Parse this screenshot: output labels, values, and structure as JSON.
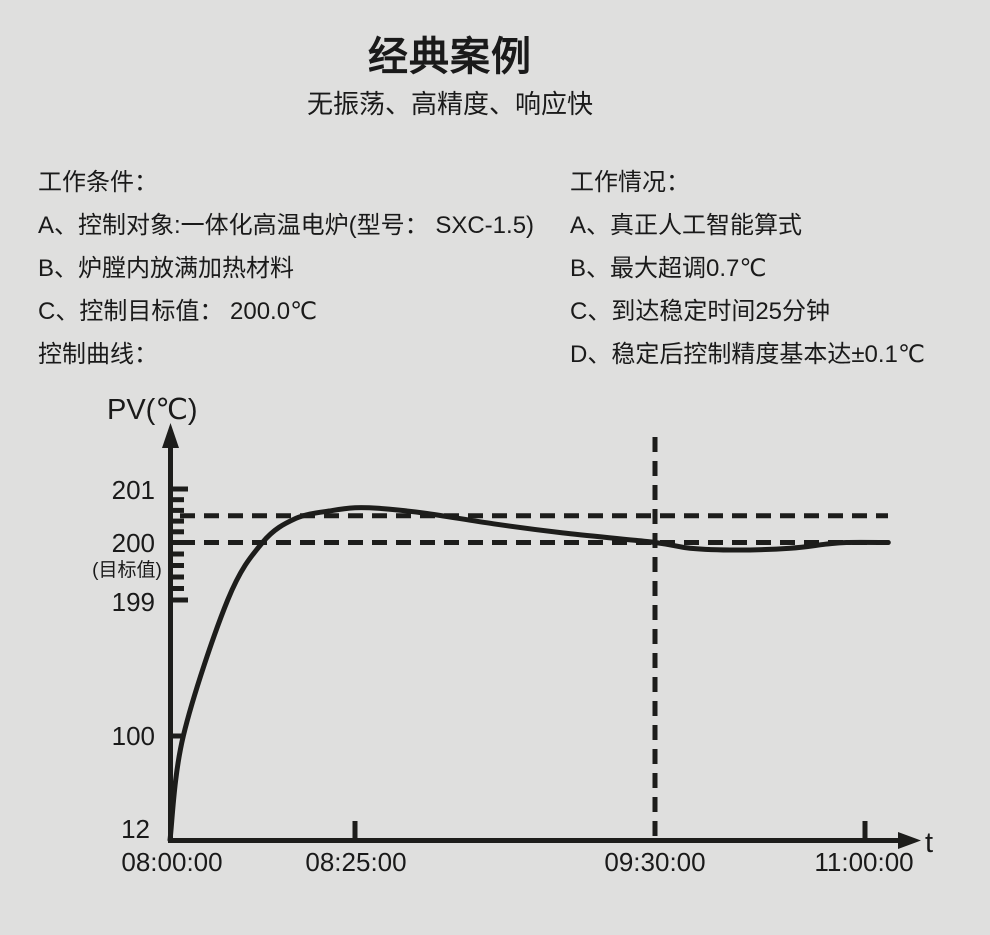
{
  "page": {
    "title": "经典案例",
    "subtitle": "无振荡、高精度、响应快"
  },
  "conditions": {
    "heading": "工作条件：",
    "items": [
      "A、控制对象:一体化高温电炉(型号： SXC-1.5)",
      "B、炉膛内放满加热材料",
      "C、控制目标值： 200.0℃"
    ],
    "curve_label": "控制曲线："
  },
  "performance": {
    "heading": "工作情况：",
    "items": [
      "A、真正人工智能算式",
      "B、最大超调0.7℃",
      "C、到达稳定时间25分钟",
      "D、稳定后控制精度基本达±0.1℃"
    ]
  },
  "chart_data": {
    "type": "line",
    "title": "控制曲线",
    "x_axis_label": "t",
    "y_axis_label": "PV(℃)",
    "x_tick_labels": [
      "08:00:00",
      "08:25:00",
      "09:30:00",
      "11:00:00"
    ],
    "x_tick_minutes": [
      0,
      25,
      90,
      180
    ],
    "y_tick_labels": [
      "201",
      "200",
      "199",
      "100",
      "12"
    ],
    "y_tick_values": [
      201,
      200,
      199,
      100,
      12
    ],
    "target_value_label": "(目标值)",
    "target_temp": 200.0,
    "overshoot_line_temp": 200.5,
    "vertical_marker_time": "09:30:00",
    "ruler_ticks": {
      "from": 199,
      "to": 201,
      "step": 0.2
    },
    "line_color": "#1d1d1b",
    "series": [
      {
        "name": "PV",
        "points_min_temp": [
          [
            0,
            12
          ],
          [
            1.8,
            100
          ],
          [
            7.8,
            199
          ],
          [
            12.5,
            200
          ],
          [
            17,
            200.45
          ],
          [
            22,
            200.6
          ],
          [
            25,
            200.65
          ],
          [
            30,
            200.64
          ],
          [
            40,
            200.55
          ],
          [
            55,
            200.35
          ],
          [
            70,
            200.18
          ],
          [
            90,
            200.0
          ],
          [
            105,
            199.9
          ],
          [
            125,
            199.87
          ],
          [
            148,
            199.9
          ],
          [
            163,
            199.97
          ],
          [
            172,
            200.0
          ],
          [
            190,
            200.0
          ]
        ]
      }
    ]
  }
}
